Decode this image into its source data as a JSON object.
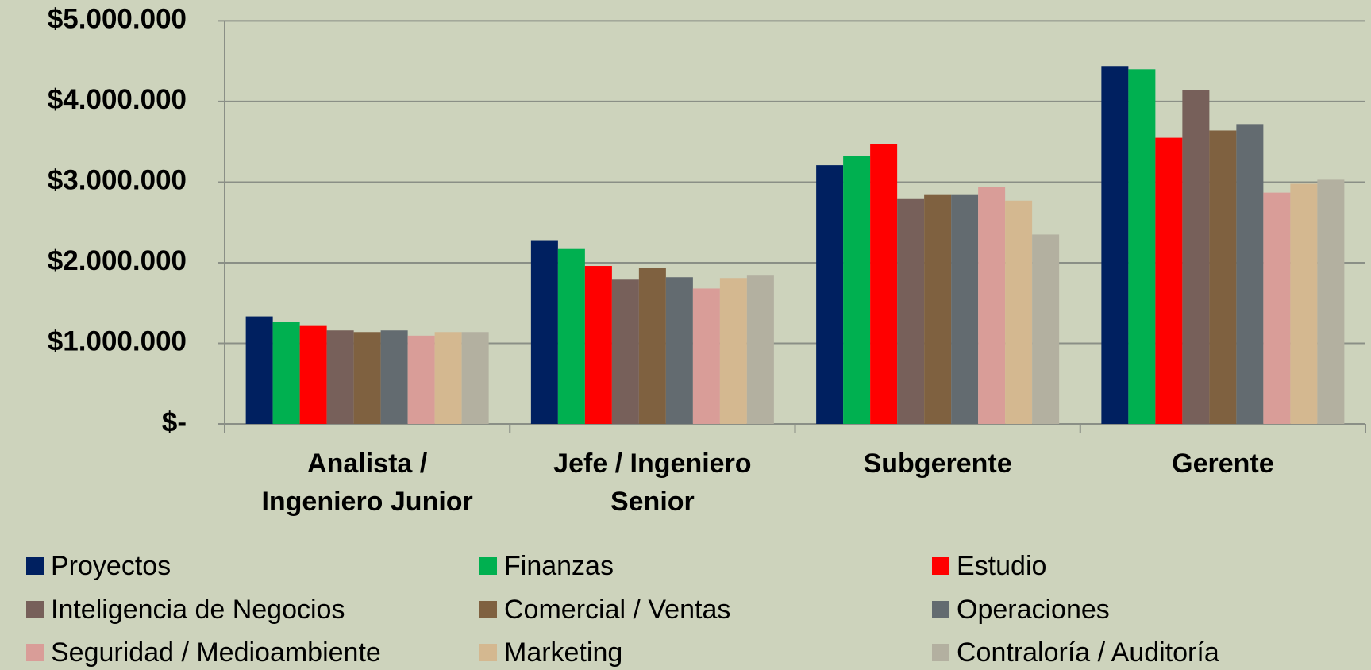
{
  "chart_data": {
    "type": "bar",
    "categories": [
      "Analista / Ingeniero Junior",
      "Jefe / Ingeniero Senior",
      "Subgerente",
      "Gerente"
    ],
    "series": [
      {
        "name": "Proyectos",
        "color": "#002060",
        "values": [
          1334000,
          2280000,
          3210000,
          4440000
        ]
      },
      {
        "name": "Finanzas",
        "color": "#00b050",
        "values": [
          1270000,
          2170000,
          3320000,
          4400000
        ]
      },
      {
        "name": "Estudio",
        "color": "#ff0000",
        "values": [
          1215000,
          1960000,
          3470000,
          3550000
        ]
      },
      {
        "name": "Inteligencia de Negocios",
        "color": "#77605a",
        "values": [
          1160000,
          1790000,
          2790000,
          4140000
        ]
      },
      {
        "name": "Comercial / Ventas",
        "color": "#7f6140",
        "values": [
          1140000,
          1940000,
          2840000,
          3640000
        ]
      },
      {
        "name": "Operaciones",
        "color": "#636b70",
        "values": [
          1160000,
          1820000,
          2840000,
          3720000
        ]
      },
      {
        "name": "Seguridad / Medioambiente",
        "color": "#d99d98",
        "values": [
          1095000,
          1680000,
          2940000,
          2870000
        ]
      },
      {
        "name": "Marketing",
        "color": "#d4b890",
        "values": [
          1140000,
          1810000,
          2770000,
          2980000
        ]
      },
      {
        "name": "Contraloría / Auditoría",
        "color": "#b3b0a0",
        "values": [
          1140000,
          1840000,
          2350000,
          3030000
        ]
      }
    ],
    "ylim": [
      0,
      5000000
    ],
    "yticks": [
      {
        "value": 0,
        "label": "$-"
      },
      {
        "value": 1000000,
        "label": "$1.000.000"
      },
      {
        "value": 2000000,
        "label": "$2.000.000"
      },
      {
        "value": 3000000,
        "label": "$3.000.000"
      },
      {
        "value": 4000000,
        "label": "$4.000.000"
      },
      {
        "value": 5000000,
        "label": "$5.000.000"
      }
    ],
    "grid": true,
    "legend": "bottom"
  }
}
